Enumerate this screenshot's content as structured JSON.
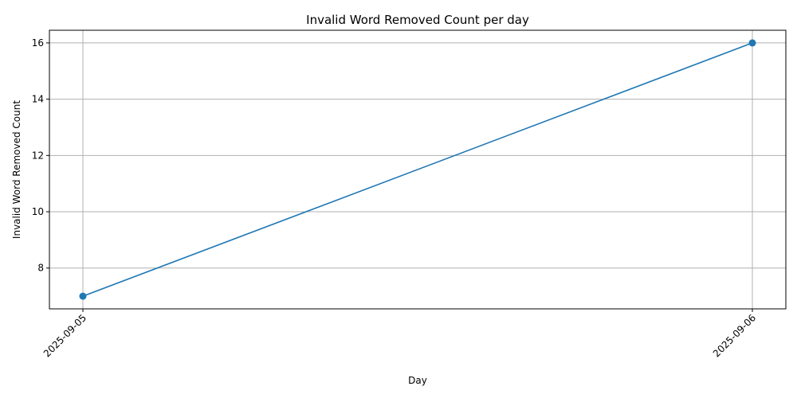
{
  "chart_data": {
    "type": "line",
    "title": "Invalid Word Removed Count per day",
    "xlabel": "Day",
    "ylabel": "Invalid Word Removed Count",
    "categories": [
      "2025-09-05",
      "2025-09-06"
    ],
    "series": [
      {
        "values": [
          7,
          16
        ],
        "color": "#1f77b4",
        "marker": "circle"
      }
    ],
    "yticks": [
      8,
      10,
      12,
      14,
      16
    ],
    "ylim": [
      6.55,
      16.45
    ],
    "grid": true,
    "x_tick_rotation": 45
  }
}
